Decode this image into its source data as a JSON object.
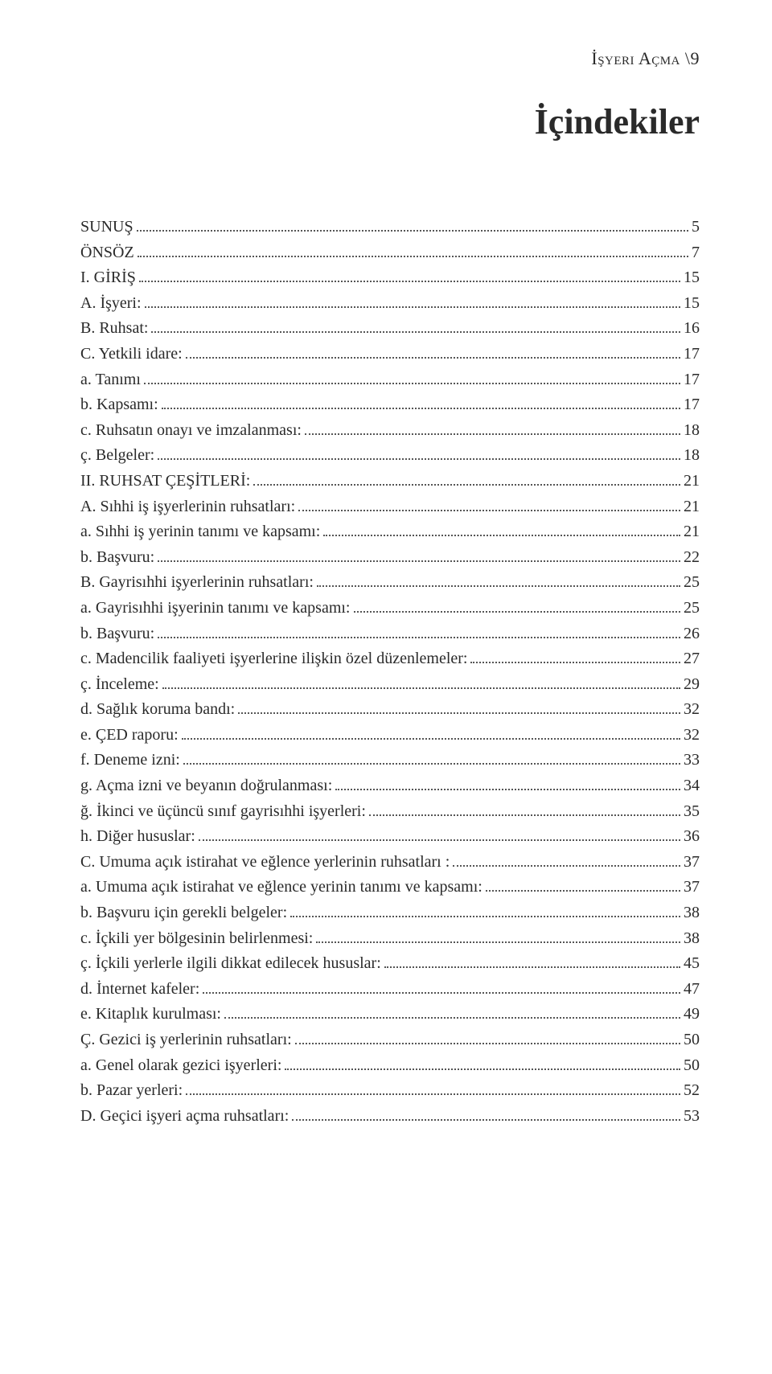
{
  "header_label": "İşyeri Açma \\9",
  "title": "İçindekiler",
  "toc": [
    {
      "label": "SUNUŞ",
      "page": "5"
    },
    {
      "label": "ÖNSÖZ",
      "page": "7"
    },
    {
      "label": "I. GİRİŞ",
      "page": "15"
    },
    {
      "label": "A. İşyeri:",
      "page": "15"
    },
    {
      "label": "B. Ruhsat:",
      "page": "16"
    },
    {
      "label": "C. Yetkili idare:",
      "page": "17"
    },
    {
      "label": "a. Tanımı",
      "page": "17"
    },
    {
      "label": "b. Kapsamı:",
      "page": "17"
    },
    {
      "label": "c. Ruhsatın onayı ve imzalanması:",
      "page": "18"
    },
    {
      "label": "ç. Belgeler:",
      "page": "18"
    },
    {
      "label": "II. RUHSAT ÇEŞİTLERİ:",
      "page": "21"
    },
    {
      "label": "A. Sıhhi iş işyerlerinin ruhsatları:",
      "page": "21"
    },
    {
      "label": "a. Sıhhi iş yerinin tanımı ve kapsamı:",
      "page": "21"
    },
    {
      "label": "b. Başvuru:",
      "page": "22"
    },
    {
      "label": "B. Gayrisıhhi işyerlerinin ruhsatları:",
      "page": "25"
    },
    {
      "label": "a. Gayrisıhhi işyerinin tanımı ve kapsamı:",
      "page": "25"
    },
    {
      "label": "b. Başvuru:",
      "page": "26"
    },
    {
      "label": "c. Madencilik faaliyeti işyerlerine ilişkin özel düzenlemeler:",
      "page": "27"
    },
    {
      "label": "ç. İnceleme:",
      "page": "29"
    },
    {
      "label": "d. Sağlık koruma bandı:",
      "page": "32"
    },
    {
      "label": "e. ÇED raporu:",
      "page": "32"
    },
    {
      "label": "f. Deneme izni:",
      "page": "33"
    },
    {
      "label": "g. Açma izni ve beyanın doğrulanması:",
      "page": "34"
    },
    {
      "label": "ğ. İkinci ve üçüncü sınıf gayrisıhhi işyerleri:",
      "page": "35"
    },
    {
      "label": "h. Diğer hususlar:",
      "page": "36"
    },
    {
      "label": "C. Umuma açık istirahat ve eğlence yerlerinin ruhsatları :",
      "page": "37"
    },
    {
      "label": "a. Umuma açık istirahat ve eğlence yerinin tanımı ve kapsamı:",
      "page": "37"
    },
    {
      "label": "b. Başvuru için gerekli belgeler:",
      "page": "38"
    },
    {
      "label": "c. İçkili yer bölgesinin belirlenmesi:",
      "page": "38"
    },
    {
      "label": "ç. İçkili yerlerle ilgili dikkat edilecek hususlar:",
      "page": "45"
    },
    {
      "label": "d. İnternet kafeler:",
      "page": "47"
    },
    {
      "label": "e. Kitaplık kurulması:",
      "page": "49"
    },
    {
      "label": "Ç. Gezici iş yerlerinin ruhsatları:",
      "page": "50"
    },
    {
      "label": "a. Genel olarak gezici işyerleri:",
      "page": "50"
    },
    {
      "label": "b. Pazar yerleri:",
      "page": "52"
    },
    {
      "label": "D. Geçici işyeri açma ruhsatları:",
      "page": "53"
    }
  ]
}
